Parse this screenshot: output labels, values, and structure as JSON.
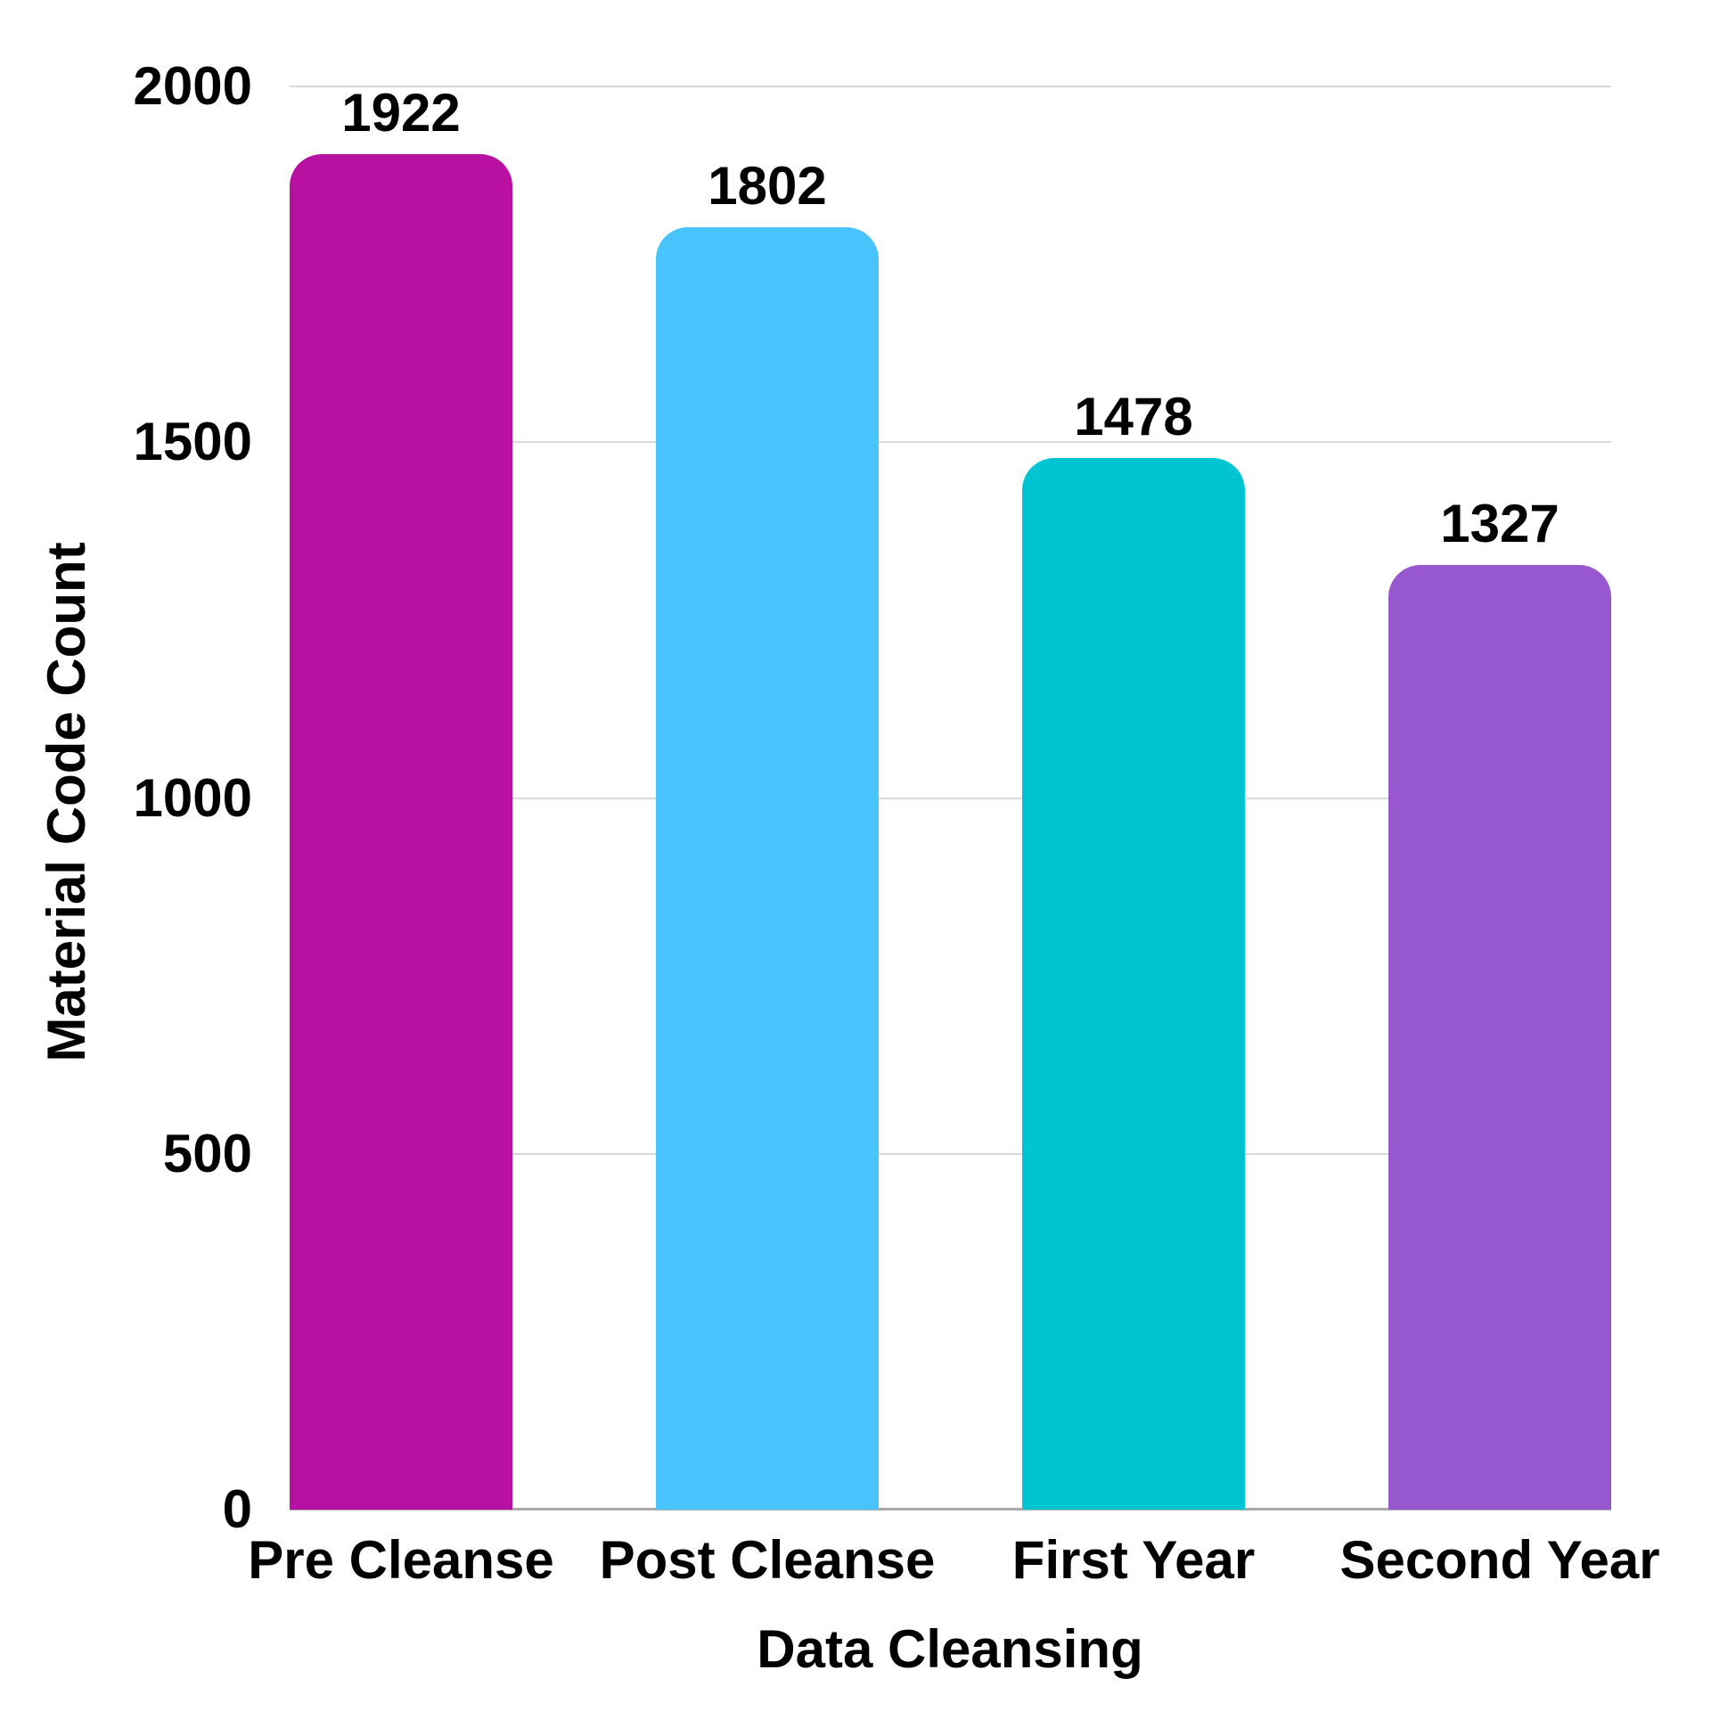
{
  "chart_data": {
    "type": "bar",
    "title": "",
    "categories": [
      "Pre Cleanse",
      "Post Cleanse",
      "First Year",
      "Second Year"
    ],
    "values": [
      1922,
      1802,
      1478,
      1327
    ],
    "bar_colors": [
      "#B810A0",
      "#49C3FC",
      "#00C4D1",
      "#9757CE"
    ],
    "value_labels": [
      "1922",
      "1802",
      "1478",
      "1327"
    ],
    "xlabel": "Data Cleansing",
    "ylabel": "Material Code Count",
    "ylim": [
      0,
      2000
    ],
    "yticks": [
      0,
      500,
      1000,
      1500,
      2000
    ],
    "ytick_labels": [
      "0",
      "500",
      "1000",
      "1500",
      "2000"
    ],
    "grid": "horizontal",
    "legend": "none"
  },
  "colors": {
    "background": "#FFFFFF",
    "gridline": "#D8D8D8",
    "baseline": "#A9A9A9",
    "text": "#000000"
  }
}
